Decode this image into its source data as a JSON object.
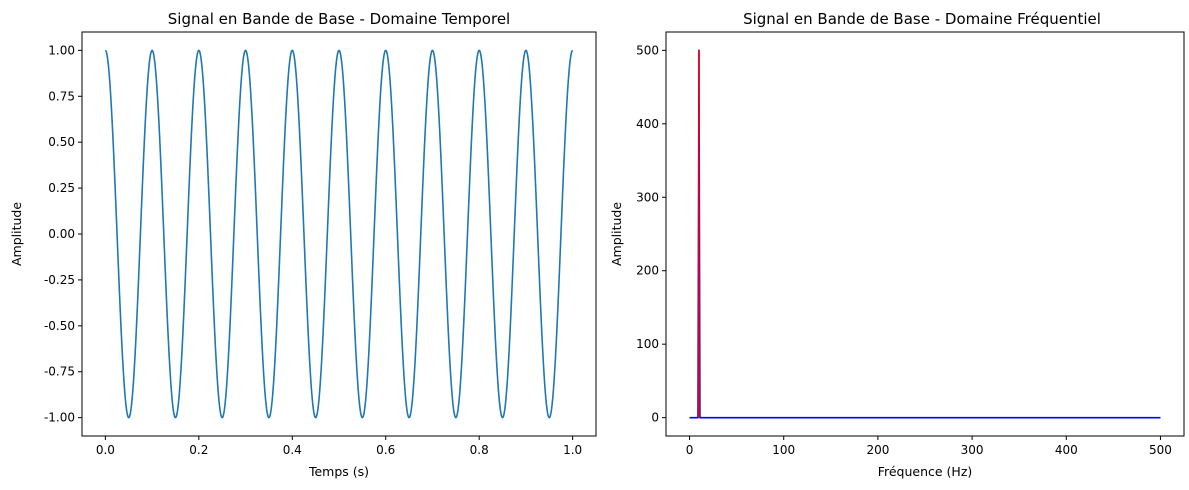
{
  "chart_data": [
    {
      "type": "line",
      "title": "Signal en Bande de Base - Domaine Temporel",
      "xlabel": "Temps (s)",
      "ylabel": "Amplitude",
      "xlim": [
        -0.05,
        1.05
      ],
      "ylim": [
        -1.1,
        1.1
      ],
      "xticks": [
        "0.0",
        "0.2",
        "0.4",
        "0.6",
        "0.8",
        "1.0"
      ],
      "yticks": [
        "-1.00",
        "-0.75",
        "-0.50",
        "-0.25",
        "0.00",
        "0.25",
        "0.50",
        "0.75",
        "1.00"
      ],
      "grid": false,
      "series": [
        {
          "color": "#1f77b4",
          "function": "cos(2*pi*10*t)",
          "x_range": [
            0,
            1
          ],
          "frequency_hz": 10,
          "amplitude": 1
        }
      ]
    },
    {
      "type": "line",
      "title": "Signal en Bande de Base - Domaine Fréquentiel",
      "xlabel": "Fréquence (Hz)",
      "ylabel": "Amplitude",
      "xlim": [
        -25,
        525
      ],
      "ylim": [
        -25,
        525
      ],
      "xticks": [
        "0",
        "100",
        "200",
        "300",
        "400",
        "500"
      ],
      "yticks": [
        "0",
        "100",
        "200",
        "300",
        "400",
        "500"
      ],
      "grid": false,
      "series": [
        {
          "color": "#0000ff",
          "x": [
            0,
            9,
            10,
            11,
            500
          ],
          "y": [
            0,
            0,
            500,
            0,
            0
          ]
        },
        {
          "color": "#ff0000",
          "x": [
            10,
            10
          ],
          "y": [
            0,
            500
          ]
        }
      ]
    }
  ]
}
